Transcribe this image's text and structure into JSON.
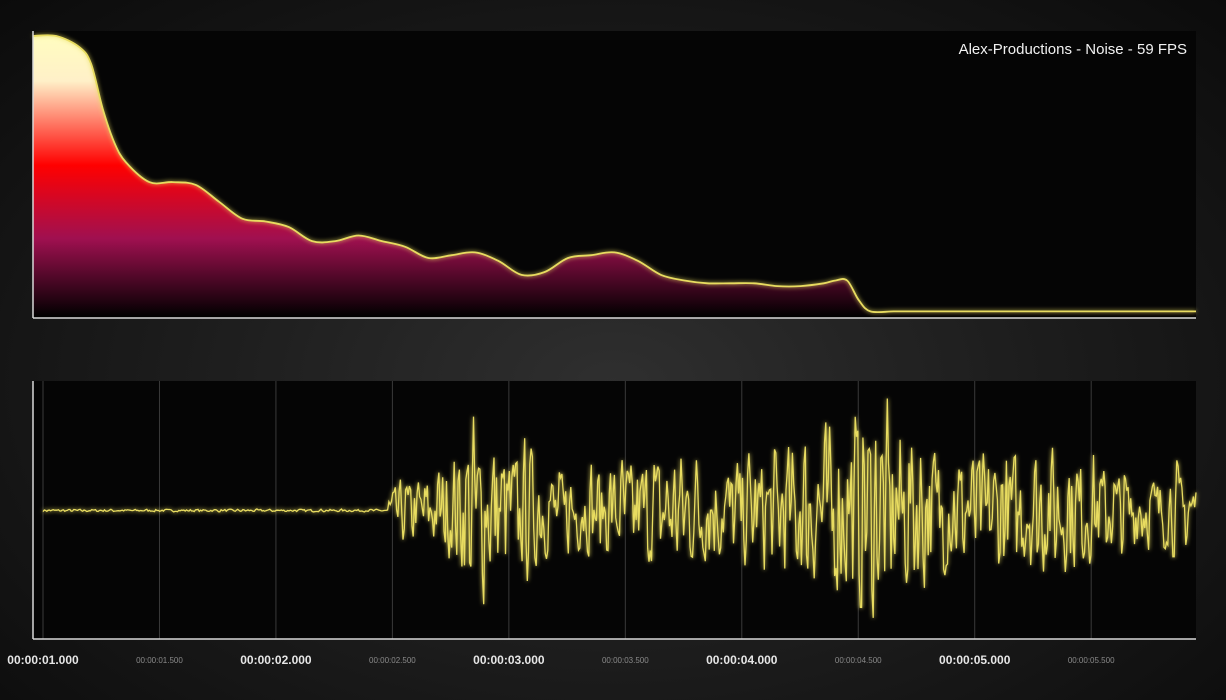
{
  "title": "Alex-Productions - Noise - 59 FPS",
  "colors": {
    "line": "#e8dc60",
    "spectrum_gradient": [
      "#fffdc0",
      "#ff0000",
      "#a01050",
      "#000000"
    ]
  },
  "chart_data": [
    {
      "type": "area",
      "title": "Alex-Productions - Noise - 59 FPS",
      "x": [
        0,
        2,
        4,
        5,
        6,
        7,
        8,
        10,
        12,
        14,
        16,
        18,
        20,
        22,
        24,
        26,
        28,
        30,
        32,
        34,
        36,
        38,
        40,
        42,
        44,
        46,
        48,
        50,
        52,
        54,
        56,
        58,
        60,
        62,
        64,
        66,
        68,
        69,
        70,
        71,
        72,
        74,
        76,
        78,
        80,
        82,
        84,
        86,
        88,
        90,
        92,
        94,
        96,
        98,
        100
      ],
      "values": [
        1.0,
        1.0,
        0.96,
        0.9,
        0.74,
        0.62,
        0.55,
        0.48,
        0.48,
        0.47,
        0.41,
        0.35,
        0.34,
        0.32,
        0.27,
        0.27,
        0.29,
        0.27,
        0.25,
        0.21,
        0.22,
        0.23,
        0.2,
        0.15,
        0.16,
        0.21,
        0.22,
        0.23,
        0.2,
        0.15,
        0.13,
        0.12,
        0.12,
        0.12,
        0.11,
        0.11,
        0.12,
        0.13,
        0.13,
        0.06,
        0.02,
        0.02,
        0.02,
        0.02,
        0.02,
        0.02,
        0.02,
        0.02,
        0.02,
        0.02,
        0.02,
        0.02,
        0.02,
        0.02,
        0.02
      ],
      "xlim": [
        0,
        100
      ],
      "ylim": [
        0,
        1
      ],
      "grid": false
    },
    {
      "type": "line",
      "xlim": [
        1.0,
        5.95
      ],
      "ylim": [
        -1,
        1
      ],
      "signal_onset": 2.48,
      "major_ticks": [
        {
          "value": 1.0,
          "label": "00:00:01.000"
        },
        {
          "value": 2.0,
          "label": "00:00:02.000"
        },
        {
          "value": 3.0,
          "label": "00:00:03.000"
        },
        {
          "value": 4.0,
          "label": "00:00:04.000"
        },
        {
          "value": 5.0,
          "label": "00:00:05.000"
        }
      ],
      "minor_ticks": [
        {
          "value": 1.5,
          "label": "00:00:01.500"
        },
        {
          "value": 2.5,
          "label": "00:00:02.500"
        },
        {
          "value": 3.5,
          "label": "00:00:03.500"
        },
        {
          "value": 4.5,
          "label": "00:00:04.500"
        },
        {
          "value": 5.5,
          "label": "00:00:05.500"
        }
      ],
      "grid": true
    }
  ]
}
